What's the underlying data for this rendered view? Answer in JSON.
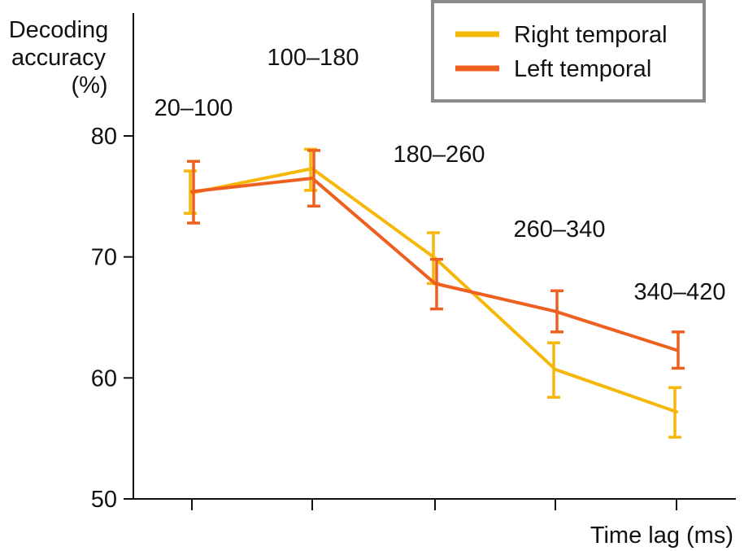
{
  "chart_data": {
    "type": "line",
    "ylabel_lines": [
      "Decoding",
      "accuracy",
      "(%)"
    ],
    "xlabel": "Time lag (ms)",
    "categories": [
      "20–100",
      "100–180",
      "180–260",
      "260–340",
      "340–420"
    ],
    "ylim": [
      50,
      80
    ],
    "yticks": [
      50,
      60,
      70,
      80
    ],
    "grid": false,
    "legend_position": "top-right",
    "series": [
      {
        "name": "Right temporal",
        "color": "#F5B80A",
        "values": [
          75.3,
          77.3,
          69.9,
          60.7,
          57.2
        ],
        "err_low": [
          73.6,
          75.5,
          67.8,
          58.4,
          55.1
        ],
        "err_high": [
          77.1,
          78.9,
          72.0,
          62.9,
          59.2
        ]
      },
      {
        "name": "Left temporal",
        "color": "#EE6020",
        "values": [
          75.4,
          76.5,
          67.8,
          65.5,
          62.3
        ],
        "err_low": [
          72.8,
          74.2,
          65.7,
          63.8,
          60.8
        ],
        "err_high": [
          77.9,
          78.8,
          69.8,
          67.2,
          63.8
        ]
      }
    ]
  }
}
